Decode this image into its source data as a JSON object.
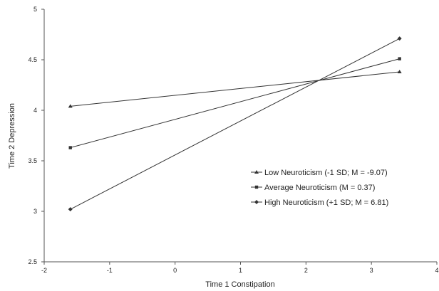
{
  "chart_data": {
    "type": "line",
    "xlabel": "Time 1 Constipation",
    "ylabel": "Time 2 Depression",
    "xlim": [
      -2,
      4
    ],
    "ylim": [
      2.5,
      5
    ],
    "xticks": [
      "-2",
      "-1",
      "0",
      "1",
      "2",
      "3",
      "4"
    ],
    "yticks": [
      "2.5",
      "3",
      "3.5",
      "4",
      "4.5",
      "5"
    ],
    "grid": false,
    "legend_position": "right-center",
    "line_color": "#333333",
    "series": [
      {
        "name": "Low Neuroticism (-1 SD; M = -9.07)",
        "marker": "triangle",
        "points": [
          [
            -1.6,
            4.04
          ],
          [
            3.43,
            4.38
          ]
        ]
      },
      {
        "name": "Average Neuroticism (M = 0.37)",
        "marker": "square",
        "points": [
          [
            -1.6,
            3.63
          ],
          [
            3.43,
            4.51
          ]
        ]
      },
      {
        "name": "High Neuroticism (+1 SD; M = 6.81)",
        "marker": "diamond",
        "points": [
          [
            -1.6,
            3.02
          ],
          [
            3.43,
            4.71
          ]
        ]
      }
    ]
  }
}
